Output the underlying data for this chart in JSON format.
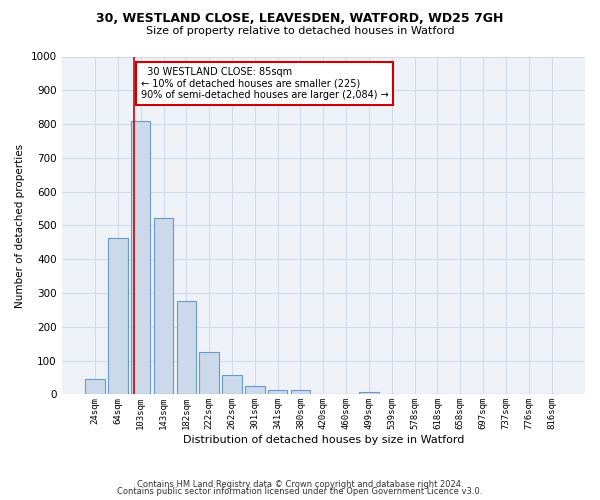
{
  "title_line1": "30, WESTLAND CLOSE, LEAVESDEN, WATFORD, WD25 7GH",
  "title_line2": "Size of property relative to detached houses in Watford",
  "xlabel": "Distribution of detached houses by size in Watford",
  "ylabel": "Number of detached properties",
  "bar_color": "#ccd9ea",
  "bar_edge_color": "#6699cc",
  "grid_color": "#d0dae8",
  "background_color": "#eef2f8",
  "categories": [
    "24sqm",
    "64sqm",
    "103sqm",
    "143sqm",
    "182sqm",
    "222sqm",
    "262sqm",
    "301sqm",
    "341sqm",
    "380sqm",
    "420sqm",
    "460sqm",
    "499sqm",
    "539sqm",
    "578sqm",
    "618sqm",
    "658sqm",
    "697sqm",
    "737sqm",
    "776sqm",
    "816sqm"
  ],
  "values": [
    45,
    462,
    810,
    522,
    275,
    125,
    58,
    25,
    13,
    13,
    0,
    0,
    8,
    0,
    0,
    0,
    0,
    0,
    0,
    0,
    0
  ],
  "ylim": [
    0,
    1000
  ],
  "yticks": [
    0,
    100,
    200,
    300,
    400,
    500,
    600,
    700,
    800,
    900,
    1000
  ],
  "vline_x": 1.7,
  "annotation_text": "  30 WESTLAND CLOSE: 85sqm\n← 10% of detached houses are smaller (225)\n90% of semi-detached houses are larger (2,084) →",
  "annotation_box_color": "#ffffff",
  "annotation_box_edge": "#cc0000",
  "vline_color": "#cc0000",
  "footer_line1": "Contains HM Land Registry data © Crown copyright and database right 2024.",
  "footer_line2": "Contains public sector information licensed under the Open Government Licence v3.0."
}
